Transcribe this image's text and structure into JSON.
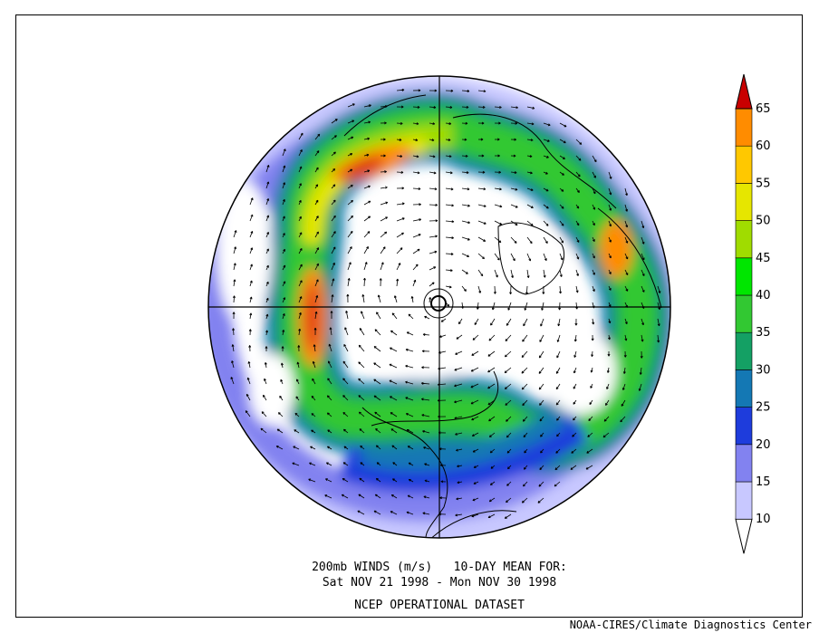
{
  "figure": {
    "caption_line1": "200mb WINDS (m/s)   10-DAY MEAN FOR:",
    "caption_line2": "Sat NOV 21 1998 - Mon NOV 30 1998",
    "dataset": "NCEP OPERATIONAL DATASET",
    "credit": "NOAA-CIRES/Climate Diagnostics Center"
  },
  "colorbar": {
    "labels": [
      "10",
      "15",
      "20",
      "25",
      "30",
      "35",
      "40",
      "45",
      "50",
      "55",
      "60",
      "65"
    ],
    "colors": [
      "#ffffff",
      "#c8c8ff",
      "#8282f0",
      "#1e3cdc",
      "#1478b4",
      "#14a064",
      "#32c832",
      "#00e600",
      "#a0dc00",
      "#e6e600",
      "#ffc800",
      "#ff8c00",
      "#ff4600",
      "#c80000"
    ]
  }
}
